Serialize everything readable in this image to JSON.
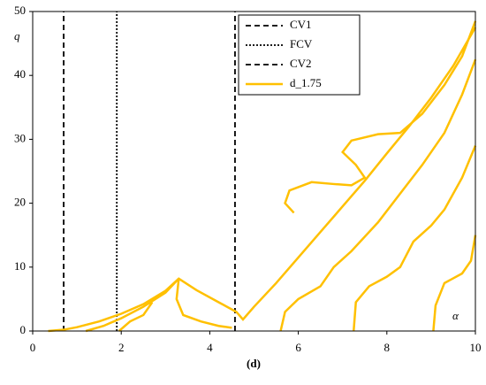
{
  "chart_data": {
    "type": "line",
    "y_label": "q",
    "x_label": "α",
    "caption": "(d)",
    "xlim": [
      0,
      10
    ],
    "ylim": [
      0,
      50
    ],
    "xticks": [
      0,
      2,
      4,
      6,
      8,
      10
    ],
    "yticks": [
      0,
      10,
      20,
      30,
      40,
      50
    ],
    "grid": false,
    "legend": "upper right",
    "series": [
      {
        "name": "CV1",
        "color": "#000000",
        "dash": "dashed",
        "x": [
          0.7,
          0.7
        ],
        "values": [
          0,
          50
        ]
      },
      {
        "name": "FCV",
        "color": "#000000",
        "dash": "dotted",
        "x": [
          1.9,
          1.9
        ],
        "values": [
          0,
          50
        ]
      },
      {
        "name": "CV2",
        "color": "#000000",
        "dash": "dashed",
        "x": [
          4.57,
          4.57
        ],
        "values": [
          0,
          50
        ]
      },
      {
        "name": "d_1.75",
        "color": "#ffc000",
        "dash": "solid",
        "x": [
          0.35,
          0.7,
          1,
          1.5,
          2,
          2.5,
          3,
          3.3,
          3.7,
          4.2,
          4.6,
          4.75,
          5,
          5.5,
          6,
          6.5,
          7,
          7.5,
          8,
          8.5,
          9,
          9.5,
          10,
          null,
          1.2,
          1.6,
          2,
          2.5,
          3,
          3.3,
          null,
          3.3,
          3.25,
          3.4,
          3.8,
          4.2,
          4.5,
          null,
          1.95,
          2.2,
          2.5,
          2.7,
          null,
          5.9,
          5.7,
          5.8,
          6.3,
          6.8,
          7.2,
          7.5,
          7.3,
          7,
          7.2,
          7.8,
          8.3,
          8.8,
          9.3,
          9.7,
          10,
          null,
          5.6,
          5.7,
          6,
          6.5,
          6.8,
          7.2,
          7.8,
          8.3,
          8.8,
          9.3,
          9.7,
          10,
          null,
          7.25,
          7.3,
          7.6,
          8,
          8.3,
          8.6,
          9,
          9.3,
          9.7,
          10,
          null,
          9.05,
          9.1,
          9.3,
          9.7,
          9.9,
          10
        ],
        "values": [
          0,
          0.2,
          0.6,
          1.5,
          2.7,
          4.2,
          6.3,
          8.2,
          6.4,
          4.5,
          3,
          1.8,
          3.8,
          7.5,
          11.5,
          15.5,
          19.5,
          23.5,
          27.8,
          32,
          36.5,
          41.5,
          47.5,
          null,
          0,
          0.8,
          2,
          3.8,
          6,
          8.2,
          null,
          8.2,
          5,
          2.5,
          1.5,
          0.8,
          0.5,
          null,
          0,
          1.5,
          2.5,
          4.5,
          null,
          18.5,
          20,
          22,
          23.3,
          23,
          22.8,
          24,
          26,
          28,
          29.8,
          30.8,
          31,
          34,
          38.5,
          43,
          48.5,
          null,
          0,
          3,
          5,
          7,
          10,
          12.5,
          17,
          21.5,
          26,
          31,
          37,
          42.5,
          null,
          0,
          4.5,
          7,
          8.5,
          10,
          14,
          16.5,
          19,
          24,
          29,
          null,
          0,
          4,
          7.5,
          9,
          11,
          15
        ]
      }
    ]
  }
}
